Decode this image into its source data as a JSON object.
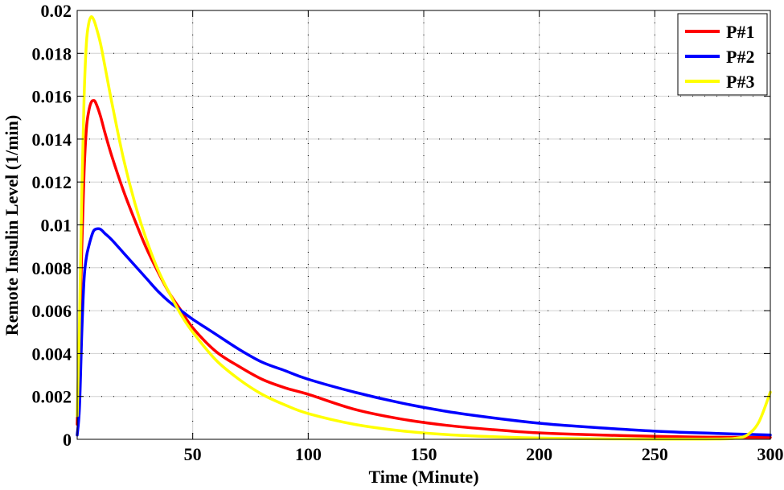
{
  "chart_data": {
    "type": "line",
    "title": "",
    "xlabel": "Time (Minute)",
    "ylabel": "Remote Insulin Level  (1/min)",
    "xlim": [
      0,
      300
    ],
    "ylim": [
      0,
      0.02
    ],
    "x_ticks": [
      50,
      100,
      150,
      200,
      250,
      300
    ],
    "y_ticks": [
      0,
      0.002,
      0.004,
      0.006,
      0.008,
      0.01,
      0.012,
      0.014,
      0.016,
      0.018,
      0.02
    ],
    "x_tick_labels": [
      "50",
      "100",
      "150",
      "200",
      "250",
      "300"
    ],
    "y_tick_labels": [
      "0",
      "0.002",
      "0.004",
      "0.006",
      "0.008",
      "0.01",
      "0.012",
      "0.014",
      "0.016",
      "0.018",
      "0.02"
    ],
    "grid": true,
    "legend_position": "top-right",
    "series": [
      {
        "name": "P#1",
        "color": "#ff0000",
        "x": [
          0,
          1,
          2,
          3,
          4,
          5,
          6,
          7,
          8,
          10,
          12,
          15,
          20,
          25,
          30,
          35,
          40,
          45,
          50,
          60,
          70,
          80,
          90,
          100,
          120,
          140,
          160,
          180,
          200,
          220,
          250,
          275,
          300
        ],
        "y": [
          0.0007,
          0.0045,
          0.009,
          0.0125,
          0.0145,
          0.0153,
          0.0157,
          0.0158,
          0.0157,
          0.0151,
          0.0143,
          0.0132,
          0.0116,
          0.0102,
          0.0089,
          0.0078,
          0.0068,
          0.006,
          0.0052,
          0.0041,
          0.0034,
          0.0028,
          0.0024,
          0.0021,
          0.0014,
          0.00095,
          0.00065,
          0.00045,
          0.0003,
          0.00022,
          0.00014,
          0.0001,
          9e-05
        ]
      },
      {
        "name": "P#2",
        "color": "#0000ff",
        "x": [
          0,
          1,
          2,
          3,
          4,
          5,
          6,
          7,
          8,
          10,
          12,
          15,
          20,
          25,
          30,
          35,
          40,
          45,
          50,
          60,
          70,
          80,
          90,
          100,
          120,
          140,
          160,
          180,
          200,
          220,
          250,
          275,
          300
        ],
        "y": [
          0.0002,
          0.0015,
          0.005,
          0.0075,
          0.0085,
          0.009,
          0.0094,
          0.0097,
          0.0098,
          0.0098,
          0.0096,
          0.0093,
          0.0087,
          0.0081,
          0.0075,
          0.0069,
          0.0064,
          0.006,
          0.0056,
          0.0049,
          0.0042,
          0.0036,
          0.0032,
          0.0028,
          0.0022,
          0.0017,
          0.0013,
          0.001,
          0.00075,
          0.00058,
          0.00038,
          0.00028,
          0.0002
        ]
      },
      {
        "name": "P#3",
        "color": "#ffff00",
        "x": [
          0,
          1,
          2,
          3,
          4,
          5,
          6,
          7,
          8,
          10,
          12,
          15,
          20,
          25,
          30,
          35,
          40,
          45,
          50,
          60,
          70,
          80,
          90,
          100,
          120,
          140,
          160,
          180,
          200,
          220,
          250,
          270,
          280,
          285,
          290,
          295,
          300
        ],
        "y": [
          0.0011,
          0.0055,
          0.0115,
          0.016,
          0.0185,
          0.0194,
          0.0197,
          0.0196,
          0.0193,
          0.0185,
          0.0174,
          0.0157,
          0.0131,
          0.011,
          0.0093,
          0.0079,
          0.0068,
          0.0058,
          0.005,
          0.0037,
          0.0028,
          0.0021,
          0.0016,
          0.0012,
          0.0007,
          0.0004,
          0.00022,
          0.00012,
          6e-05,
          3e-05,
          1e-05,
          1e-05,
          2e-05,
          5e-05,
          0.0002,
          0.0008,
          0.0022
        ]
      }
    ]
  }
}
